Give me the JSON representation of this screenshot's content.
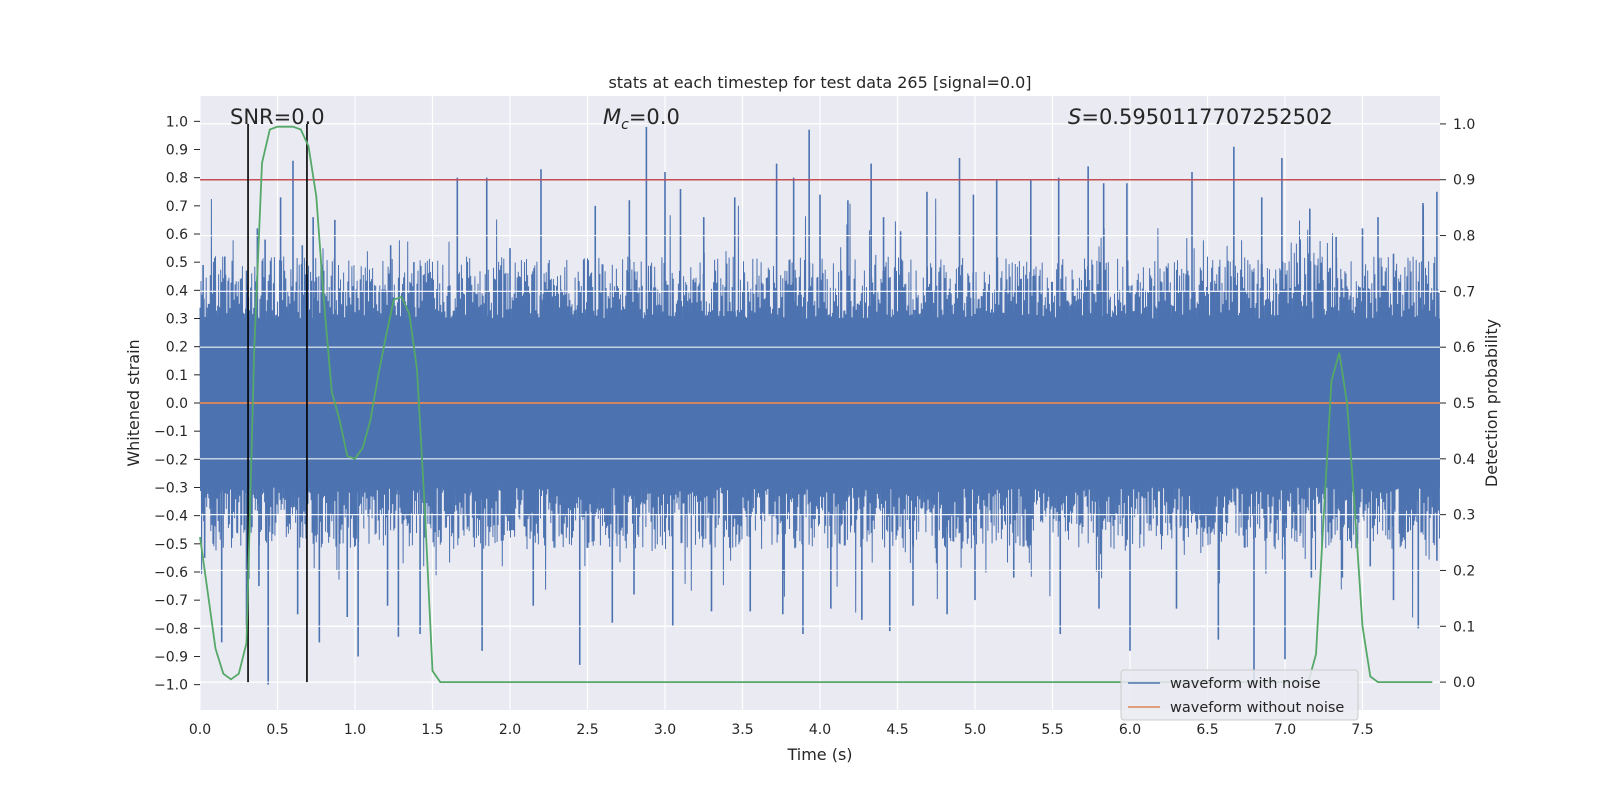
{
  "chart_data": {
    "type": "line",
    "title": "stats at each timestep for test data 265 [signal=0.0]",
    "xlabel": "Time (s)",
    "ylabel": "Whitened strain",
    "y2label": "Detection probability",
    "xlim": [
      0.0,
      8.0
    ],
    "ylim": [
      -1.09,
      1.09
    ],
    "y2lim": [
      -0.05,
      1.05
    ],
    "xticks": [
      "0.0",
      "0.5",
      "1.0",
      "1.5",
      "2.0",
      "2.5",
      "3.0",
      "3.5",
      "4.0",
      "4.5",
      "5.0",
      "5.5",
      "6.0",
      "6.5",
      "7.0",
      "7.5"
    ],
    "yticks": [
      "1.0",
      "0.9",
      "0.8",
      "0.7",
      "0.6",
      "0.5",
      "0.4",
      "0.3",
      "0.2",
      "0.1",
      "0.0",
      "−0.1",
      "−0.2",
      "−0.3",
      "−0.4",
      "−0.5",
      "−0.6",
      "−0.7",
      "−0.8",
      "−0.9",
      "−1.0"
    ],
    "y2ticks": [
      "1.0",
      "0.9",
      "0.8",
      "0.7",
      "0.6",
      "0.5",
      "0.4",
      "0.3",
      "0.2",
      "0.1",
      "0.0"
    ],
    "threshold": {
      "value": 0.9,
      "axis": "right",
      "color": "#c44e52"
    },
    "vlines": {
      "x": [
        0.31,
        0.69
      ],
      "color": "#000000"
    },
    "annotations": {
      "snr": {
        "text": "SNR=0.0",
        "x": 0.2
      },
      "mc": {
        "prefix": "M",
        "sub": "c",
        "suffix": "=0.0",
        "x": 2.6
      },
      "s": {
        "prefix": "S",
        "suffix": "=0.5950117707252502",
        "x": 5.6
      }
    },
    "series": [
      {
        "name": "waveform with noise",
        "color": "#4c72b0",
        "style": "dense noise",
        "band": 0.3,
        "upper_peaks": [
          [
            0.02,
            0.49
          ],
          [
            0.16,
            0.52
          ],
          [
            0.3,
            0.47
          ],
          [
            0.37,
            0.62
          ],
          [
            0.42,
            0.58
          ],
          [
            0.52,
            0.73
          ],
          [
            0.6,
            0.86
          ],
          [
            0.66,
            0.56
          ],
          [
            0.73,
            0.66
          ],
          [
            0.87,
            0.65
          ],
          [
            1.23,
            0.56
          ],
          [
            1.38,
            0.5
          ],
          [
            1.66,
            0.8
          ],
          [
            1.85,
            0.8
          ],
          [
            2.0,
            0.55
          ],
          [
            2.2,
            0.83
          ],
          [
            2.55,
            0.7
          ],
          [
            2.77,
            0.72
          ],
          [
            2.88,
            0.98
          ],
          [
            3.0,
            0.82
          ],
          [
            3.1,
            0.76
          ],
          [
            3.25,
            0.66
          ],
          [
            3.45,
            0.73
          ],
          [
            3.72,
            0.85
          ],
          [
            3.83,
            0.8
          ],
          [
            3.93,
            0.97
          ],
          [
            4.0,
            0.74
          ],
          [
            4.18,
            0.72
          ],
          [
            4.33,
            0.85
          ],
          [
            4.41,
            0.66
          ],
          [
            4.52,
            0.61
          ],
          [
            4.69,
            0.75
          ],
          [
            4.9,
            0.87
          ],
          [
            4.99,
            0.74
          ],
          [
            5.14,
            0.79
          ],
          [
            5.36,
            0.79
          ],
          [
            5.54,
            0.8
          ],
          [
            5.73,
            0.84
          ],
          [
            5.83,
            0.78
          ],
          [
            5.98,
            0.78
          ],
          [
            6.4,
            0.82
          ],
          [
            6.67,
            0.91
          ],
          [
            6.85,
            0.73
          ],
          [
            6.98,
            0.87
          ],
          [
            7.16,
            0.69
          ],
          [
            7.33,
            0.59
          ],
          [
            7.5,
            0.62
          ],
          [
            7.6,
            0.66
          ],
          [
            7.7,
            0.53
          ],
          [
            7.89,
            0.71
          ],
          [
            7.98,
            0.75
          ]
        ],
        "lower_peaks": [
          [
            0.03,
            -0.55
          ],
          [
            0.14,
            -0.85
          ],
          [
            0.3,
            -0.8
          ],
          [
            0.38,
            -0.65
          ],
          [
            0.44,
            -1.0
          ],
          [
            0.63,
            -0.75
          ],
          [
            0.77,
            -0.85
          ],
          [
            0.95,
            -0.76
          ],
          [
            1.02,
            -0.9
          ],
          [
            1.21,
            -0.72
          ],
          [
            1.28,
            -0.83
          ],
          [
            1.42,
            -0.82
          ],
          [
            1.82,
            -0.88
          ],
          [
            2.15,
            -0.72
          ],
          [
            2.45,
            -0.93
          ],
          [
            2.66,
            -0.78
          ],
          [
            2.8,
            -0.68
          ],
          [
            3.05,
            -0.79
          ],
          [
            3.3,
            -0.74
          ],
          [
            3.55,
            -0.74
          ],
          [
            3.76,
            -0.75
          ],
          [
            3.89,
            -0.82
          ],
          [
            4.07,
            -0.73
          ],
          [
            4.27,
            -0.77
          ],
          [
            4.45,
            -0.81
          ],
          [
            4.6,
            -0.72
          ],
          [
            4.82,
            -0.75
          ],
          [
            5.0,
            -0.7
          ],
          [
            5.25,
            -0.62
          ],
          [
            5.55,
            -0.82
          ],
          [
            5.8,
            -0.73
          ],
          [
            6.0,
            -0.88
          ],
          [
            6.3,
            -0.73
          ],
          [
            6.57,
            -0.84
          ],
          [
            6.8,
            -1.0
          ],
          [
            7.0,
            -0.91
          ],
          [
            7.17,
            -0.62
          ],
          [
            7.37,
            -0.62
          ],
          [
            7.55,
            -0.58
          ],
          [
            7.7,
            -0.7
          ],
          [
            7.86,
            -0.8
          ],
          [
            7.98,
            -0.56
          ]
        ]
      },
      {
        "name": "waveform without noise",
        "color": "#dd8452",
        "x": [
          0.0,
          8.0
        ],
        "y": [
          0.0,
          0.0
        ]
      },
      {
        "name": "detection probability",
        "axis": "right",
        "color": "#55a868",
        "x": [
          0.0,
          0.05,
          0.1,
          0.15,
          0.2,
          0.25,
          0.3,
          0.35,
          0.4,
          0.45,
          0.5,
          0.55,
          0.6,
          0.65,
          0.7,
          0.75,
          0.8,
          0.85,
          0.9,
          0.95,
          1.0,
          1.05,
          1.1,
          1.15,
          1.2,
          1.25,
          1.3,
          1.35,
          1.4,
          1.45,
          1.5,
          1.55,
          1.6,
          7.1,
          7.15,
          7.2,
          7.25,
          7.3,
          7.35,
          7.4,
          7.45,
          7.5,
          7.55,
          7.6,
          7.65,
          7.7,
          7.75,
          7.8,
          7.85,
          7.9,
          7.95
        ],
        "y": [
          0.26,
          0.16,
          0.06,
          0.015,
          0.005,
          0.015,
          0.07,
          0.6,
          0.93,
          0.99,
          0.995,
          0.995,
          0.995,
          0.99,
          0.96,
          0.87,
          0.68,
          0.52,
          0.47,
          0.405,
          0.4,
          0.42,
          0.47,
          0.55,
          0.62,
          0.685,
          0.69,
          0.66,
          0.56,
          0.31,
          0.02,
          0.0,
          0.0,
          0.0,
          0.0,
          0.05,
          0.3,
          0.54,
          0.59,
          0.5,
          0.31,
          0.1,
          0.01,
          0.0,
          0.0,
          0.0,
          0.0,
          0.0,
          0.0,
          0.0,
          0.0
        ]
      }
    ],
    "legend": {
      "position": "lower-right",
      "entries": [
        "waveform with noise",
        "waveform without noise"
      ]
    }
  }
}
